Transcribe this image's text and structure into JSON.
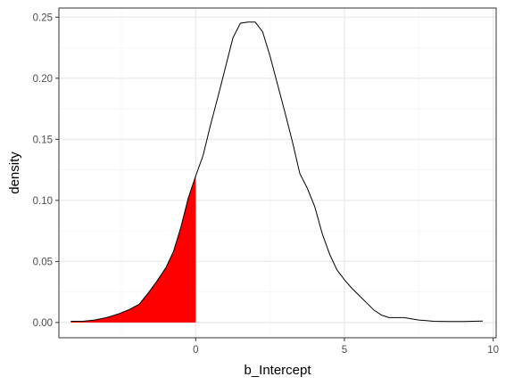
{
  "chart_data": {
    "type": "area",
    "title": "",
    "xlabel": "b_Intercept",
    "ylabel": "density",
    "xlim": [
      -4.6,
      10.1
    ],
    "ylim": [
      -0.0125,
      0.2575
    ],
    "x_ticks": [
      0,
      5,
      10
    ],
    "x_tick_labels": [
      "0",
      "5",
      "10"
    ],
    "y_ticks": [
      0,
      0.05,
      0.1,
      0.15,
      0.2,
      0.25
    ],
    "y_tick_labels": [
      "0.00",
      "0.05",
      "0.10",
      "0.15",
      "0.20",
      "0.25"
    ],
    "grid": true,
    "legend": "none",
    "series": [
      {
        "x": [
          -4.2,
          -3.8,
          -3.4,
          -3.0,
          -2.6,
          -2.2,
          -1.9,
          -1.6,
          -1.3,
          -1.0,
          -0.75,
          -0.5,
          -0.25,
          0.0,
          0.25,
          0.5,
          0.75,
          1.0,
          1.25,
          1.5,
          1.75,
          2.0,
          2.25,
          2.5,
          2.75,
          3.0,
          3.25,
          3.5,
          3.75,
          4.0,
          4.25,
          4.5,
          4.75,
          5.0,
          5.25,
          5.5,
          5.75,
          6.0,
          6.25,
          6.5,
          6.75,
          7.0,
          7.25,
          7.5,
          7.75,
          8.0,
          8.5,
          9.0,
          9.65
        ],
        "y": [
          0.001,
          0.001,
          0.002,
          0.004,
          0.007,
          0.011,
          0.015,
          0.024,
          0.034,
          0.045,
          0.058,
          0.078,
          0.102,
          0.12,
          0.137,
          0.162,
          0.185,
          0.209,
          0.233,
          0.245,
          0.246,
          0.246,
          0.238,
          0.218,
          0.195,
          0.172,
          0.148,
          0.122,
          0.11,
          0.095,
          0.073,
          0.056,
          0.043,
          0.035,
          0.028,
          0.022,
          0.016,
          0.01,
          0.006,
          0.004,
          0.004,
          0.004,
          0.003,
          0.002,
          0.0015,
          0.001,
          0.0008,
          0.0008,
          0.0012
        ]
      }
    ],
    "shade": {
      "from_x": -4.2,
      "to_x": 0.0,
      "color": "#ff0000"
    },
    "colors": {
      "panel_border": "#333333",
      "grid_major": "#ebebeb",
      "grid_minor": "#f5f5f5",
      "line": "#000000"
    }
  }
}
